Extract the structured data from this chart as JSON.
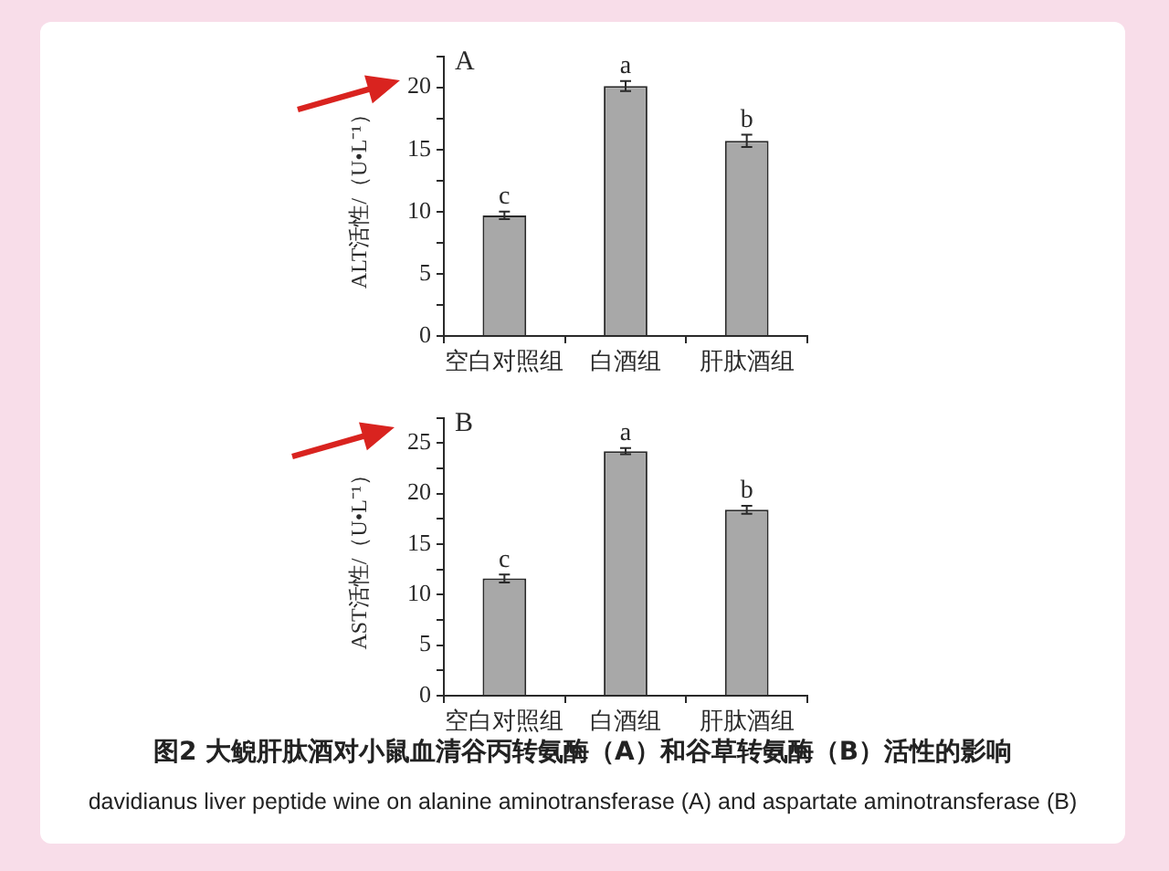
{
  "chart_data": [
    {
      "type": "bar",
      "title": "A",
      "ylabel": "ALT活性/（U•L⁻¹）",
      "categories": [
        "空白对照组",
        "白酒组",
        "肝肽酒组"
      ],
      "values": [
        9.7,
        20.1,
        15.7
      ],
      "errors": [
        0.3,
        0.4,
        0.5
      ],
      "color": "#a8a8a8",
      "ylim": [
        0,
        22.5
      ],
      "yticks": [
        0,
        {
          "value": 2.5,
          "label": null
        },
        5,
        {
          "value": 7.5,
          "label": null
        },
        10,
        {
          "value": 12.5,
          "label": null
        },
        15,
        {
          "value": 17.5,
          "label": null
        },
        20,
        {
          "value": 22.5,
          "label": null
        }
      ],
      "annotations": [
        {
          "text": "c",
          "x": "空白对照组",
          "y": 10.0
        },
        {
          "text": "a",
          "x": "白酒组",
          "y": 20.5
        },
        {
          "text": "b",
          "x": "肝肽酒组",
          "y": 16.2
        }
      ]
    },
    {
      "type": "bar",
      "title": "B",
      "ylabel": "AST活性/（U•L⁻¹）",
      "categories": [
        "空白对照组",
        "白酒组",
        "肝肽酒组"
      ],
      "values": [
        11.6,
        24.2,
        18.4
      ],
      "errors": [
        0.4,
        0.3,
        0.4
      ],
      "color": "#a8a8a8",
      "ylim": [
        0,
        27.5
      ],
      "yticks": [
        0,
        {
          "value": 2.5,
          "label": null
        },
        5,
        {
          "value": 7.5,
          "label": null
        },
        10,
        {
          "value": 12.5,
          "label": null
        },
        15,
        {
          "value": 17.5,
          "label": null
        },
        20,
        {
          "value": 22.5,
          "label": null
        },
        25,
        {
          "value": 27.5,
          "label": null
        }
      ],
      "annotations": [
        {
          "text": "c",
          "x": "空白对照组",
          "y": 12.0
        },
        {
          "text": "a",
          "x": "白酒组",
          "y": 24.5
        },
        {
          "text": "b",
          "x": "肝肽酒组",
          "y": 18.8
        },
        "图2 大鲵肝肽酒对小鼠血清谷丙转氨酶（A）和谷草转氨酶（B）活性的影响",
        "davidianus liver peptide wine on alanine aminotransferase (A) and aspartate aminotransferase (B)"
      ]
    }
  ]
}
